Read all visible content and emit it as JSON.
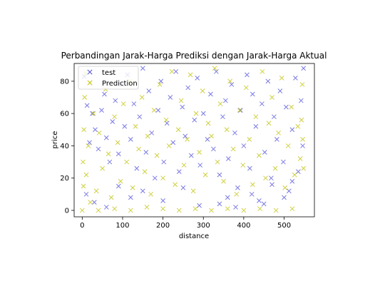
{
  "chart_data": {
    "type": "scatter",
    "title": "Perbandingan Jarak-Harga Prediksi dengan Jarak-Harga Aktual",
    "xlabel": "distance",
    "ylabel": "price",
    "xlim": [
      -20,
      575
    ],
    "ylim": [
      -4,
      91
    ],
    "xticks": [
      0,
      100,
      200,
      300,
      400,
      500
    ],
    "yticks": [
      0,
      20,
      40,
      60,
      80
    ],
    "grid": false,
    "legend_position": "top-left",
    "marker": "x",
    "series": [
      {
        "name": "test",
        "color": "#4d4dd9",
        "points": [
          [
            5,
            83
          ],
          [
            12,
            65
          ],
          [
            18,
            42
          ],
          [
            25,
            60
          ],
          [
            32,
            50
          ],
          [
            40,
            38
          ],
          [
            48,
            62
          ],
          [
            55,
            72
          ],
          [
            60,
            45
          ],
          [
            68,
            30
          ],
          [
            75,
            55
          ],
          [
            82,
            68
          ],
          [
            90,
            35
          ],
          [
            98,
            78
          ],
          [
            105,
            52
          ],
          [
            112,
            84
          ],
          [
            120,
            44
          ],
          [
            128,
            66
          ],
          [
            135,
            26
          ],
          [
            142,
            58
          ],
          [
            150,
            88
          ],
          [
            158,
            36
          ],
          [
            165,
            74
          ],
          [
            172,
            48
          ],
          [
            180,
            20
          ],
          [
            188,
            62
          ],
          [
            195,
            80
          ],
          [
            202,
            30
          ],
          [
            210,
            54
          ],
          [
            218,
            70
          ],
          [
            225,
            42
          ],
          [
            232,
            86
          ],
          [
            240,
            24
          ],
          [
            248,
            64
          ],
          [
            255,
            46
          ],
          [
            262,
            76
          ],
          [
            270,
            34
          ],
          [
            278,
            56
          ],
          [
            285,
            82
          ],
          [
            292,
            28
          ],
          [
            300,
            60
          ],
          [
            310,
            44
          ],
          [
            318,
            72
          ],
          [
            325,
            38
          ],
          [
            332,
            86
          ],
          [
            340,
            22
          ],
          [
            348,
            58
          ],
          [
            355,
            68
          ],
          [
            362,
            32
          ],
          [
            370,
            78
          ],
          [
            378,
            48
          ],
          [
            385,
            14
          ],
          [
            392,
            62
          ],
          [
            400,
            40
          ],
          [
            408,
            84
          ],
          [
            415,
            26
          ],
          [
            422,
            72
          ],
          [
            430,
            52
          ],
          [
            438,
            6
          ],
          [
            445,
            66
          ],
          [
            452,
            36
          ],
          [
            460,
            80
          ],
          [
            468,
            20
          ],
          [
            475,
            58
          ],
          [
            482,
            44
          ],
          [
            490,
            74
          ],
          [
            498,
            30
          ],
          [
            505,
            64
          ],
          [
            512,
            12
          ],
          [
            520,
            50
          ],
          [
            528,
            82
          ],
          [
            535,
            24
          ],
          [
            542,
            68
          ],
          [
            546,
            40
          ],
          [
            548,
            88
          ],
          [
            340,
            4
          ],
          [
            360,
            8
          ],
          [
            380,
            2
          ],
          [
            420,
            10
          ],
          [
            450,
            4
          ],
          [
            470,
            16
          ],
          [
            500,
            8
          ],
          [
            520,
            18
          ],
          [
            10,
            10
          ],
          [
            30,
            5
          ],
          [
            60,
            2
          ],
          [
            90,
            15
          ],
          [
            120,
            8
          ],
          [
            150,
            12
          ],
          [
            200,
            6
          ],
          [
            250,
            14
          ],
          [
            290,
            3
          ]
        ]
      },
      {
        "name": "Prediction",
        "color": "#bfbf00",
        "points": [
          [
            2,
            30
          ],
          [
            3,
            15
          ],
          [
            4,
            50
          ],
          [
            6,
            70
          ],
          [
            8,
            85
          ],
          [
            10,
            22
          ],
          [
            15,
            40
          ],
          [
            20,
            5
          ],
          [
            28,
            60
          ],
          [
            35,
            12
          ],
          [
            42,
            48
          ],
          [
            50,
            26
          ],
          [
            58,
            75
          ],
          [
            65,
            35
          ],
          [
            72,
            8
          ],
          [
            80,
            58
          ],
          [
            88,
            42
          ],
          [
            95,
            18
          ],
          [
            102,
            66
          ],
          [
            110,
            30
          ],
          [
            118,
            80
          ],
          [
            125,
            14
          ],
          [
            132,
            52
          ],
          [
            140,
            38
          ],
          [
            148,
            70
          ],
          [
            155,
            24
          ],
          [
            162,
            46
          ],
          [
            170,
            10
          ],
          [
            178,
            62
          ],
          [
            185,
            34
          ],
          [
            192,
            78
          ],
          [
            200,
            20
          ],
          [
            208,
            56
          ],
          [
            215,
            40
          ],
          [
            222,
            86
          ],
          [
            230,
            16
          ],
          [
            238,
            50
          ],
          [
            245,
            68
          ],
          [
            252,
            28
          ],
          [
            260,
            44
          ],
          [
            268,
            84
          ],
          [
            275,
            12
          ],
          [
            282,
            60
          ],
          [
            290,
            36
          ],
          [
            298,
            74
          ],
          [
            305,
            22
          ],
          [
            312,
            54
          ],
          [
            320,
            46
          ],
          [
            328,
            88
          ],
          [
            335,
            30
          ],
          [
            342,
            66
          ],
          [
            350,
            18
          ],
          [
            358,
            50
          ],
          [
            366,
            80
          ],
          [
            374,
            38
          ],
          [
            382,
            10
          ],
          [
            390,
            62
          ],
          [
            398,
            28
          ],
          [
            406,
            76
          ],
          [
            414,
            44
          ],
          [
            422,
            16
          ],
          [
            430,
            58
          ],
          [
            438,
            34
          ],
          [
            446,
            86
          ],
          [
            454,
            20
          ],
          [
            462,
            54
          ],
          [
            470,
            70
          ],
          [
            478,
            26
          ],
          [
            486,
            48
          ],
          [
            494,
            82
          ],
          [
            502,
            14
          ],
          [
            510,
            40
          ],
          [
            518,
            64
          ],
          [
            526,
            22
          ],
          [
            534,
            52
          ],
          [
            540,
            32
          ],
          [
            545,
            78
          ],
          [
            548,
            26
          ],
          [
            546,
            44
          ],
          [
            543,
            56
          ],
          [
            0,
            0
          ],
          [
            40,
            0
          ],
          [
            80,
            1
          ],
          [
            120,
            0
          ],
          [
            160,
            2
          ],
          [
            200,
            1
          ],
          [
            240,
            0
          ],
          [
            280,
            1
          ],
          [
            320,
            0
          ],
          [
            360,
            1
          ],
          [
            400,
            0
          ],
          [
            440,
            1
          ],
          [
            480,
            0
          ],
          [
            520,
            1
          ]
        ]
      }
    ]
  }
}
